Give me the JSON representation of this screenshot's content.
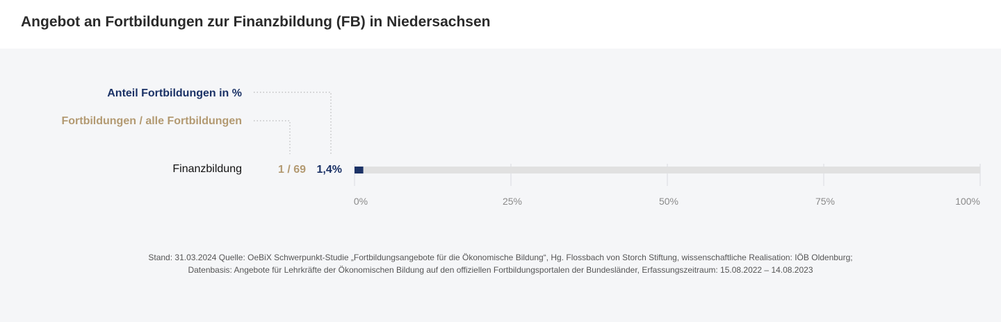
{
  "title": "Angebot an Fortbildungen zur Finanzbildung (FB) in Niedersachsen",
  "legend": {
    "percent_label": "Anteil Fortbildungen  in %",
    "count_label": "Fortbildungen / alle Fortbildungen"
  },
  "colors": {
    "percent": "#1b3266",
    "count": "#b39a72",
    "track": "#e1e1e1",
    "panel": "#f5f6f8"
  },
  "chart_data": {
    "type": "bar",
    "orientation": "horizontal",
    "categories": [
      "Finanzbildung"
    ],
    "series": [
      {
        "name": "Anteil Fortbildungen  in %",
        "values": [
          1.4
        ]
      }
    ],
    "count_labels": [
      "1 / 69"
    ],
    "value_labels": [
      "1,4%"
    ],
    "xlim": [
      0,
      100
    ],
    "x_ticks": [
      0,
      25,
      50,
      75,
      100
    ],
    "x_tick_labels": [
      "0%",
      "25%",
      "50%",
      "75%",
      "100%"
    ],
    "grid": true
  },
  "source": {
    "line1": "Stand: 31.03.2024 Quelle: OeBiX Schwerpunkt-Studie „Fortbildungsangebote für die Ökonomische Bildung“, Hg. Flossbach von Storch Stiftung, wissenschaftliche Realisation: IÖB Oldenburg;",
    "line2": "Datenbasis: Angebote für Lehrkräfte der Ökonomischen Bildung auf den offiziellen Fortbildungsportalen der Bundesländer, Erfassungszeitraum: 15.08.2022 – 14.08.2023"
  }
}
